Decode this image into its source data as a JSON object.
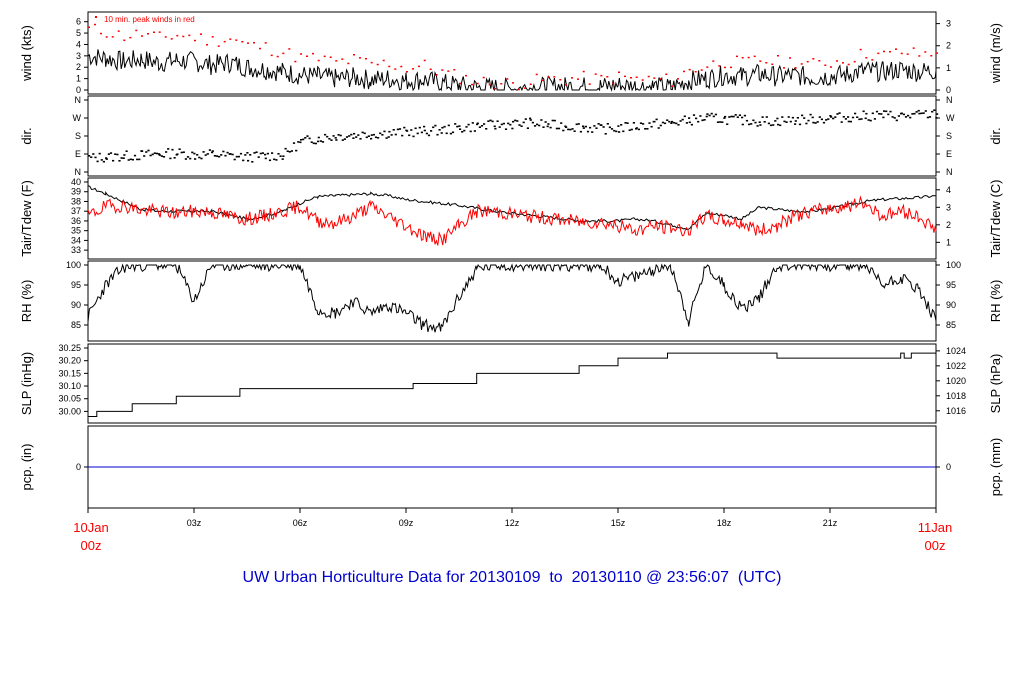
{
  "title": "UW Urban Horticulture Data for 20130109  to  20130110 @ 23:56:07  (UTC)",
  "start_date": {
    "day": "10Jan",
    "hour": "00z"
  },
  "end_date": {
    "day": "11Jan",
    "hour": "00z"
  },
  "x_ticks": [
    "03z",
    "06z",
    "09z",
    "12z",
    "15z",
    "18z",
    "21z"
  ],
  "colors": {
    "main": "#000000",
    "peak": "#ff0000",
    "dew": "#ff0000",
    "precip": "#0000cc",
    "title": "#0000cc"
  },
  "chart_data": [
    {
      "id": "wind",
      "type": "line",
      "ylabel_left": "wind (kts)",
      "ylabel_right": "wind (m/s)",
      "annotation": "10 min. peak winds in red",
      "left_ticks": [
        "0",
        "1",
        "2",
        "3",
        "4",
        "5",
        "6"
      ],
      "right_ticks": [
        "0",
        "1",
        "2",
        "3"
      ],
      "ylim": [
        0,
        6.5
      ],
      "x_hours": [
        0,
        0.5,
        1,
        1.5,
        2,
        2.5,
        3,
        3.5,
        4,
        4.5,
        5,
        5.5,
        6,
        6.5,
        7,
        7.5,
        8,
        8.5,
        9,
        9.5,
        10,
        10.5,
        11,
        11.5,
        12,
        12.5,
        13,
        13.5,
        14,
        14.5,
        15,
        15.5,
        16,
        16.5,
        17,
        17.5,
        18,
        18.5,
        19,
        19.5,
        20,
        20.5,
        21,
        21.5,
        22,
        22.5,
        23,
        23.5,
        24
      ],
      "series": [
        {
          "values": [
            3.0,
            2.8,
            2.5,
            2.7,
            2.4,
            2.6,
            2.5,
            2.2,
            2.4,
            2.0,
            1.8,
            1.6,
            1.3,
            1.2,
            1.0,
            1.1,
            0.9,
            1.0,
            0.8,
            0.9,
            0.6,
            0.4,
            0.2,
            0.2,
            0.1,
            0.2,
            0.3,
            0.3,
            0.3,
            0.3,
            0.4,
            0.3,
            0.3,
            0.2,
            0.8,
            1.0,
            1.3,
            1.2,
            1.4,
            1.2,
            1.3,
            1.1,
            1.2,
            1.4,
            1.7,
            1.6,
            1.8,
            1.6,
            1.7
          ]
        },
        {
          "values": [
            5.4,
            5.2,
            4.8,
            5.0,
            4.6,
            4.9,
            4.7,
            4.4,
            4.6,
            4.0,
            3.8,
            3.4,
            2.9,
            2.8,
            2.5,
            2.7,
            2.3,
            2.4,
            2.0,
            2.2,
            1.6,
            1.2,
            0.8,
            0.7,
            0.6,
            0.8,
            1.0,
            1.0,
            1.1,
            1.0,
            1.2,
            1.0,
            1.0,
            0.9,
            1.8,
            2.2,
            2.6,
            2.4,
            2.7,
            2.5,
            2.6,
            2.3,
            2.5,
            2.8,
            3.3,
            3.1,
            3.4,
            3.2,
            3.3
          ]
        }
      ]
    },
    {
      "id": "dir",
      "type": "scatter",
      "ylabel_left": "dir.",
      "ylabel_right": "dir.",
      "left_ticks": [
        "N",
        "E",
        "S",
        "W",
        "N"
      ],
      "right_ticks": [
        "N",
        "E",
        "S",
        "W",
        "N"
      ],
      "ylim": [
        0,
        360
      ],
      "x_hours": [
        0,
        0.5,
        1,
        1.5,
        2,
        2.5,
        3,
        3.5,
        4,
        4.5,
        5,
        5.5,
        6,
        6.5,
        7,
        7.5,
        8,
        8.5,
        9,
        9.5,
        10,
        10.5,
        11,
        11.5,
        12,
        12.5,
        13,
        13.5,
        14,
        14.5,
        15,
        15.5,
        16,
        16.5,
        17,
        17.5,
        18,
        18.5,
        19,
        19.5,
        20,
        20.5,
        21,
        21.5,
        22,
        22.5,
        23,
        23.5,
        24
      ],
      "values": [
        70,
        75,
        80,
        85,
        90,
        95,
        85,
        90,
        80,
        75,
        80,
        85,
        150,
        170,
        180,
        185,
        190,
        195,
        200,
        205,
        210,
        220,
        230,
        235,
        240,
        245,
        235,
        230,
        225,
        215,
        220,
        230,
        240,
        245,
        260,
        270,
        265,
        260,
        255,
        255,
        260,
        265,
        270,
        275,
        280,
        285,
        280,
        285,
        290
      ]
    },
    {
      "id": "temp",
      "type": "line",
      "ylabel_left": "Tair/Tdew (F)",
      "ylabel_right": "Tair/Tdew (C)",
      "left_ticks": [
        "33",
        "34",
        "35",
        "36",
        "37",
        "38",
        "39",
        "40"
      ],
      "right_ticks": [
        "1",
        "2",
        "3",
        "4"
      ],
      "ylim": [
        32.5,
        40
      ],
      "x_hours": [
        0,
        0.5,
        1,
        1.5,
        2,
        2.5,
        3,
        3.5,
        4,
        4.5,
        5,
        5.5,
        6,
        6.5,
        7,
        7.5,
        8,
        8.5,
        9,
        9.5,
        10,
        10.5,
        11,
        11.5,
        12,
        12.5,
        13,
        13.5,
        14,
        14.5,
        15,
        15.5,
        16,
        16.5,
        17,
        17.5,
        18,
        18.5,
        19,
        19.5,
        20,
        20.5,
        21,
        21.5,
        22,
        22.5,
        23,
        23.5,
        24
      ],
      "series": [
        {
          "name": "Tair",
          "values": [
            39.5,
            38.8,
            38.0,
            37.2,
            37.0,
            37.0,
            37.0,
            37.0,
            36.6,
            36.2,
            36.5,
            37.0,
            37.8,
            38.5,
            38.6,
            38.7,
            38.8,
            38.6,
            38.2,
            38.0,
            37.8,
            37.6,
            37.3,
            37.0,
            36.8,
            36.6,
            36.4,
            36.2,
            36.0,
            36.0,
            36.0,
            36.2,
            36.0,
            35.6,
            35.2,
            36.8,
            36.6,
            36.2,
            37.4,
            37.2,
            37.0,
            37.0,
            37.3,
            37.6,
            38.0,
            38.2,
            38.3,
            38.4,
            38.6
          ]
        },
        {
          "name": "Tdew",
          "values": [
            36.5,
            37.5,
            37.6,
            37.1,
            37.0,
            36.8,
            37.0,
            36.9,
            36.5,
            36.2,
            36.5,
            37.0,
            37.5,
            36.0,
            35.8,
            36.5,
            37.5,
            36.5,
            35.5,
            34.5,
            34.0,
            35.5,
            37.0,
            37.0,
            36.7,
            36.5,
            36.3,
            36.1,
            35.9,
            35.9,
            35.5,
            35.0,
            35.5,
            35.3,
            35.0,
            36.5,
            36.0,
            35.8,
            35.0,
            35.5,
            36.5,
            37.0,
            37.3,
            37.6,
            37.8,
            36.5,
            37.0,
            36.5,
            35.0
          ]
        }
      ]
    },
    {
      "id": "rh",
      "type": "line",
      "ylabel_left": "RH (%)",
      "ylabel_right": "RH (%)",
      "left_ticks": [
        "85",
        "90",
        "95",
        "100"
      ],
      "right_ticks": [
        "85",
        "90",
        "95",
        "100"
      ],
      "ylim": [
        82,
        100
      ],
      "x_hours": [
        0,
        0.5,
        1,
        1.5,
        2,
        2.5,
        3,
        3.5,
        4,
        4.5,
        5,
        5.5,
        6,
        6.5,
        7,
        7.5,
        8,
        8.5,
        9,
        9.5,
        10,
        10.5,
        11,
        11.5,
        12,
        12.5,
        13,
        13.5,
        14,
        14.5,
        15,
        15.5,
        16,
        16.5,
        17,
        17.5,
        18,
        18.5,
        19,
        19.5,
        20,
        20.5,
        21,
        21.5,
        22,
        22.5,
        23,
        23.5,
        24
      ],
      "values": [
        87,
        95,
        99.5,
        100,
        100,
        100,
        91,
        100,
        100,
        100,
        100,
        100,
        100,
        89,
        88,
        91,
        88,
        90,
        88,
        85,
        84,
        92,
        99,
        100,
        100,
        100,
        100,
        100,
        100,
        100,
        96,
        97,
        99,
        100,
        86,
        100,
        95,
        89,
        92,
        100,
        100,
        100,
        100,
        100,
        100,
        95,
        97,
        94,
        86
      ]
    },
    {
      "id": "slp",
      "type": "line",
      "ylabel_left": "SLP (inHg)",
      "ylabel_right": "SLP (hPa)",
      "left_ticks": [
        "30.00",
        "30.05",
        "30.10",
        "30.15",
        "30.20",
        "30.25"
      ],
      "right_ticks": [
        "1016",
        "1018",
        "1020",
        "1022",
        "1024"
      ],
      "ylim": [
        29.97,
        30.25
      ],
      "x_hours": [
        0,
        0.25,
        1.25,
        2.5,
        4.3,
        9.2,
        11,
        13.9,
        15,
        16.4,
        19.5,
        23,
        23.1,
        23.3,
        23.5,
        24
      ],
      "values": [
        29.98,
        30.0,
        30.03,
        30.06,
        30.09,
        30.11,
        30.15,
        30.18,
        30.21,
        30.23,
        30.21,
        30.23,
        30.21,
        30.23,
        30.23,
        30.23
      ]
    },
    {
      "id": "pcp",
      "type": "line",
      "ylabel_left": "pcp. (in)",
      "ylabel_right": "pcp. (mm)",
      "left_ticks": [
        "0"
      ],
      "right_ticks": [
        "0"
      ],
      "ylim": [
        -0.02,
        0.02
      ],
      "x_hours": [
        0,
        24
      ],
      "values": [
        0,
        0
      ]
    }
  ]
}
